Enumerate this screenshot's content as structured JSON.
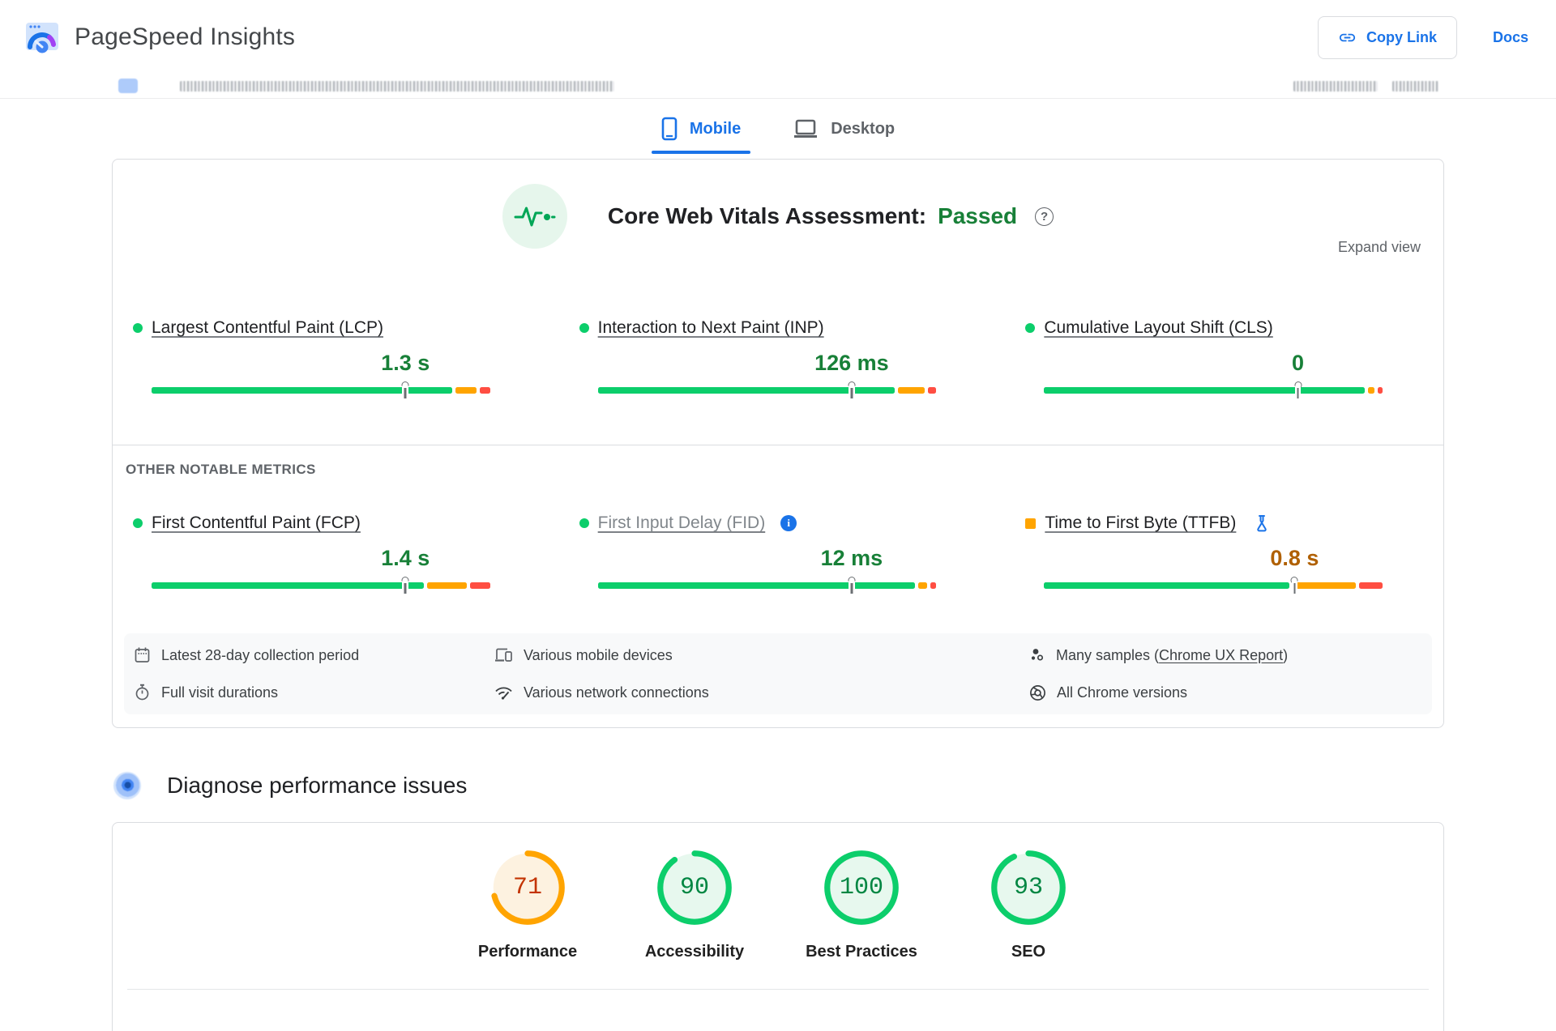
{
  "header": {
    "app_title": "PageSpeed Insights",
    "copy_link_label": "Copy Link",
    "docs_label": "Docs"
  },
  "tabs": {
    "mobile": "Mobile",
    "desktop": "Desktop"
  },
  "cwv_card": {
    "heading": "Core Web Vitals Assessment:",
    "status": "Passed",
    "help_glyph": "?",
    "expand_view": "Expand view",
    "other_metrics_label": "OTHER NOTABLE METRICS",
    "metrics": [
      {
        "label": "Largest Contentful Paint (LCP)",
        "value": "1.3 s",
        "value_color": "#188038",
        "bullet_color": "#0cce6b",
        "bullet_shape": "dot",
        "marker_pct": 75,
        "segments": [
          {
            "color": "#0cce6b",
            "pct": 90.5
          },
          {
            "color": "#ffa400",
            "pct": 6.5
          },
          {
            "color": "#ff4e42",
            "pct": 3
          }
        ]
      },
      {
        "label": "Interaction to Next Paint (INP)",
        "value": "126 ms",
        "value_color": "#188038",
        "bullet_color": "#0cce6b",
        "bullet_shape": "dot",
        "marker_pct": 75,
        "segments": [
          {
            "color": "#0cce6b",
            "pct": 89.5
          },
          {
            "color": "#ffa400",
            "pct": 8
          },
          {
            "color": "#ff4e42",
            "pct": 2.5
          }
        ]
      },
      {
        "label": "Cumulative Layout Shift (CLS)",
        "value": "0",
        "value_color": "#188038",
        "bullet_color": "#0cce6b",
        "bullet_shape": "dot",
        "marker_pct": 75,
        "segments": [
          {
            "color": "#0cce6b",
            "pct": 96.5
          },
          {
            "color": "#ffa400",
            "pct": 2
          },
          {
            "color": "#ff4e42",
            "pct": 1.5
          }
        ]
      },
      {
        "label": "First Contentful Paint (FCP)",
        "value": "1.4 s",
        "value_color": "#188038",
        "bullet_color": "#0cce6b",
        "bullet_shape": "dot",
        "marker_pct": 75,
        "segments": [
          {
            "color": "#0cce6b",
            "pct": 82
          },
          {
            "color": "#ffa400",
            "pct": 12
          },
          {
            "color": "#ff4e42",
            "pct": 6
          }
        ]
      },
      {
        "label": "First Input Delay (FID)",
        "value": "12 ms",
        "value_color": "#188038",
        "bullet_color": "#0cce6b",
        "bullet_shape": "dot",
        "marker_pct": 75,
        "deprecated": true,
        "segments": [
          {
            "color": "#0cce6b",
            "pct": 95.5
          },
          {
            "color": "#ffa400",
            "pct": 2.7
          },
          {
            "color": "#ff4e42",
            "pct": 1.8
          }
        ]
      },
      {
        "label": "Time to First Byte (TTFB)",
        "value": "0.8 s",
        "value_color": "#b06000",
        "bullet_color": "#ffa400",
        "bullet_shape": "square",
        "marker_pct": 74,
        "segments": [
          {
            "color": "#0cce6b",
            "pct": 74
          },
          {
            "color": "#ffa400",
            "pct": 19
          },
          {
            "color": "#ff4e42",
            "pct": 7
          }
        ]
      }
    ],
    "data_notes": [
      {
        "icon": "calendar-icon",
        "text": "Latest 28-day collection period"
      },
      {
        "icon": "devices-icon",
        "text": "Various mobile devices"
      },
      {
        "icon": "samples-icon",
        "prefix": "Many samples (",
        "link": "Chrome UX Report",
        "suffix": ")"
      },
      {
        "icon": "stopwatch-icon",
        "text": "Full visit durations"
      },
      {
        "icon": "network-icon",
        "text": "Various network connections"
      },
      {
        "icon": "chrome-icon",
        "text": "All Chrome versions"
      }
    ]
  },
  "diagnose": {
    "heading": "Diagnose performance issues"
  },
  "scores": [
    {
      "label": "Performance",
      "value": "71",
      "pct": 71,
      "ring": "#ffa400",
      "bg": "#fdf2e0",
      "text": "#c33300"
    },
    {
      "label": "Accessibility",
      "value": "90",
      "pct": 90,
      "ring": "#0cce6b",
      "bg": "#e7f8ee",
      "text": "#018642"
    },
    {
      "label": "Best Practices",
      "value": "100",
      "pct": 100,
      "ring": "#0cce6b",
      "bg": "#e7f8ee",
      "text": "#018642"
    },
    {
      "label": "SEO",
      "value": "93",
      "pct": 93,
      "ring": "#0cce6b",
      "bg": "#e7f8ee",
      "text": "#018642"
    }
  ]
}
